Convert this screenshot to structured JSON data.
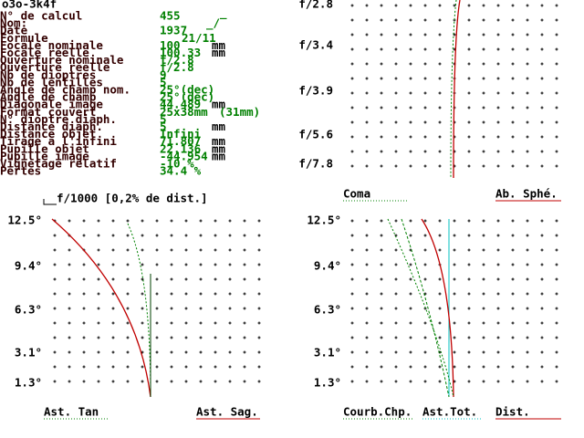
{
  "header": {
    "title": "o3o-3k4f"
  },
  "parameters": [
    {
      "label": "N° de calcul",
      "value": "455"
    },
    {
      "label": "Nom:",
      "value": "_/‾"
    },
    {
      "label": "Date",
      "value": "1937"
    },
    {
      "label": "Formule",
      "value": "21/11"
    },
    {
      "label": "Focale nominale",
      "value": "100",
      "unit": "mm"
    },
    {
      "label": "Focale réelle",
      "value": "100.33",
      "unit": "mm"
    },
    {
      "label": "Ouverture nominale",
      "value": "f/2.8"
    },
    {
      "label": "Ouverture réelle",
      "value": "f/2.8"
    },
    {
      "label": "Nb de dioptres",
      "value": "9"
    },
    {
      "label": "Nb de lentilles",
      "value": "5"
    },
    {
      "label": "Angle de champ nom.",
      "value": "25°(dec)"
    },
    {
      "label": "Angle de champ",
      "value": "25°(dec)"
    },
    {
      "label": "Diagonale image",
      "value": "44.489",
      "unit": "mm"
    },
    {
      "label": "Format couvert",
      "value": "25x38mm",
      "unit": "(31mm)"
    },
    {
      "label": "N° dioptre diaph.",
      "value": "5"
    },
    {
      "label": "Distance diaph.",
      "value": "5",
      "unit": "mm"
    },
    {
      "label": "Distance objet",
      "value": "Infini"
    },
    {
      "label": "Tirage à l'infini",
      "value": "71.807",
      "unit": "mm"
    },
    {
      "label": "Pupille objet",
      "value": "22.136",
      "unit": "mm"
    },
    {
      "label": "Pupille image",
      "value": "-44.954",
      "unit": "mm"
    },
    {
      "label": "Vignetage relatif",
      "value": "-10 %"
    },
    {
      "label": "Pertes",
      "value": "34.4 %"
    }
  ],
  "panels": {
    "aperture": {
      "y_labels": [
        "f/2.8",
        "f/3.4",
        "f/3.9",
        "f/5.6",
        "f/7.8"
      ],
      "legend": [
        "Coma",
        "Ab. Sphé."
      ]
    },
    "astigmatism": {
      "title": "f/1000 [0,2% de dist.]",
      "y_labels": [
        "12.5°",
        "9.4°",
        "6.3°",
        "3.1°",
        "1.3°"
      ],
      "legend": [
        "Ast. Tan",
        "Ast. Sag."
      ]
    },
    "field": {
      "y_labels": [
        "12.5°",
        "9.4°",
        "6.3°",
        "3.1°",
        "1.3°"
      ],
      "legend": [
        "Courb.Chp.",
        "Ast.Tot.",
        "Dist."
      ]
    }
  }
}
